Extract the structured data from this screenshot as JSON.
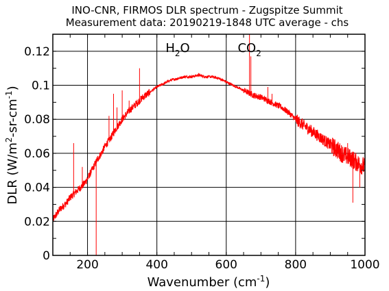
{
  "chart_data": {
    "type": "line",
    "title": "INO-CNR, FIRMOS DLR spectrum - Zugspitze Summit",
    "subtitle": "Measurement data: 20190219-1848 UTC average - chs",
    "xlabel": {
      "base": "Wavenumber (cm",
      "sup": "-1",
      "tail": ")"
    },
    "ylabel": {
      "a": "DLR (W/m",
      "sup1": "2",
      "b": "-sr-cm",
      "sup2": "-1",
      "c": ")"
    },
    "xlim": [
      100,
      1000
    ],
    "ylim": [
      0,
      0.13
    ],
    "grid": true,
    "x_ticks": [
      "200",
      "400",
      "600",
      "800",
      "1000"
    ],
    "y_ticks": [
      "0",
      "0.02",
      "0.04",
      "0.06",
      "0.08",
      "0.1",
      "0.12"
    ],
    "line_color": "#ff0000",
    "annotations": [
      {
        "base": "H",
        "sub": "2",
        "tail": "O",
        "x": 460,
        "y": 0.122
      },
      {
        "base": "CO",
        "sub": "2",
        "tail": "",
        "x": 667,
        "y": 0.122
      }
    ],
    "series": [
      {
        "x": [
          100,
          110,
          120,
          130,
          140,
          150,
          160,
          170,
          180,
          190,
          200,
          210,
          220,
          230,
          240,
          250,
          260,
          270,
          280,
          290,
          300,
          320,
          340,
          360,
          380,
          400,
          420,
          440,
          460,
          480,
          500,
          520,
          540,
          560,
          580,
          600,
          620,
          640,
          660,
          680,
          700,
          720,
          740,
          760,
          780,
          800,
          820,
          840,
          860,
          880,
          900,
          920,
          940,
          960,
          980,
          1000
        ],
        "y": [
          0.021,
          0.024,
          0.027,
          0.029,
          0.031,
          0.034,
          0.036,
          0.038,
          0.04,
          0.042,
          0.045,
          0.049,
          0.053,
          0.057,
          0.06,
          0.064,
          0.067,
          0.07,
          0.074,
          0.077,
          0.08,
          0.085,
          0.089,
          0.093,
          0.096,
          0.099,
          0.101,
          0.103,
          0.104,
          0.105,
          0.105,
          0.106,
          0.105,
          0.105,
          0.104,
          0.102,
          0.1,
          0.098,
          0.096,
          0.094,
          0.093,
          0.091,
          0.089,
          0.087,
          0.084,
          0.08,
          0.077,
          0.074,
          0.071,
          0.068,
          0.065,
          0.062,
          0.059,
          0.057,
          0.054,
          0.052
        ]
      }
    ],
    "spikes": [
      {
        "x": 160,
        "y": 0.066
      },
      {
        "x": 185,
        "y": 0.052
      },
      {
        "x": 225,
        "y": 0.0
      },
      {
        "x": 262,
        "y": 0.082
      },
      {
        "x": 275,
        "y": 0.095
      },
      {
        "x": 285,
        "y": 0.087
      },
      {
        "x": 300,
        "y": 0.097
      },
      {
        "x": 320,
        "y": 0.091
      },
      {
        "x": 350,
        "y": 0.11
      },
      {
        "x": 667,
        "y": 0.13
      },
      {
        "x": 671,
        "y": 0.117
      },
      {
        "x": 720,
        "y": 0.099
      },
      {
        "x": 732,
        "y": 0.095
      },
      {
        "x": 950,
        "y": 0.066
      },
      {
        "x": 965,
        "y": 0.031
      },
      {
        "x": 985,
        "y": 0.04
      }
    ]
  }
}
